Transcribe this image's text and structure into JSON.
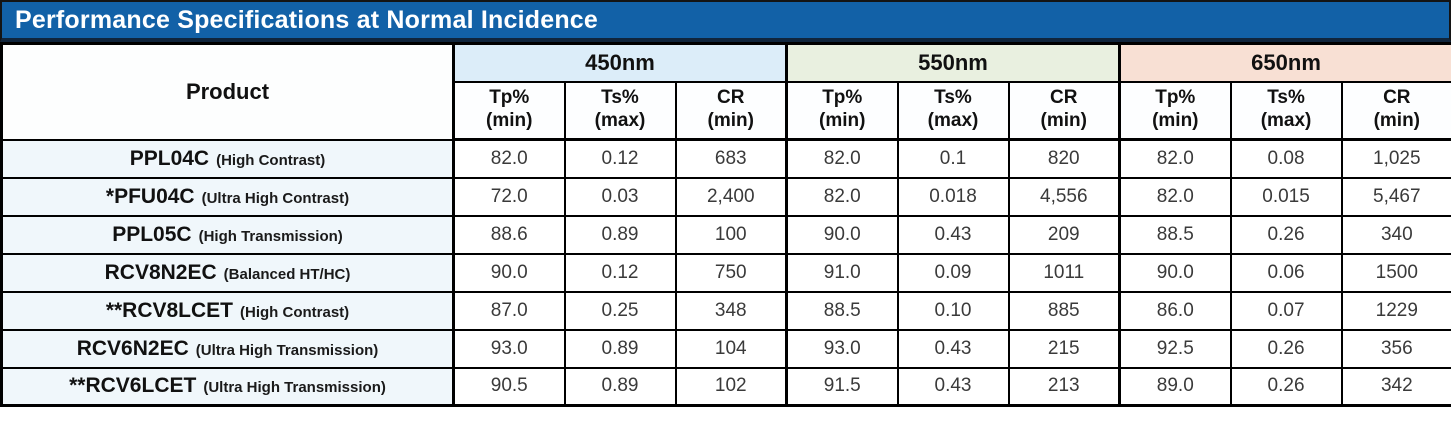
{
  "title": "Performance Specifications at Normal Incidence",
  "colors": {
    "title_bar_bg": "#1261a7",
    "title_text": "#ffffff",
    "border": "#000000",
    "product_cell_bg": "#f0f7fb",
    "value_cell_bg": "#ffffff"
  },
  "table": {
    "product_header": "Product",
    "groups": [
      {
        "label": "450nm",
        "color": "#dcedf9"
      },
      {
        "label": "550nm",
        "color": "#e9f0e0"
      },
      {
        "label": "650nm",
        "color": "#f8e0d4"
      }
    ],
    "sub_headers": [
      {
        "line1": "Tp%",
        "line2": "(min)"
      },
      {
        "line1": "Ts%",
        "line2": "(max)"
      },
      {
        "line1": "CR",
        "line2": "(min)"
      }
    ],
    "rows": [
      {
        "product": "PPL04C",
        "descriptor": "(High Contrast)",
        "values": [
          "82.0",
          "0.12",
          "683",
          "82.0",
          "0.1",
          "820",
          "82.0",
          "0.08",
          "1,025"
        ]
      },
      {
        "product": "*PFU04C",
        "descriptor": "(Ultra High Contrast)",
        "values": [
          "72.0",
          "0.03",
          "2,400",
          "82.0",
          "0.018",
          "4,556",
          "82.0",
          "0.015",
          "5,467"
        ]
      },
      {
        "product": "PPL05C",
        "descriptor": "(High Transmission)",
        "values": [
          "88.6",
          "0.89",
          "100",
          "90.0",
          "0.43",
          "209",
          "88.5",
          "0.26",
          "340"
        ]
      },
      {
        "product": "RCV8N2EC",
        "descriptor": "(Balanced HT/HC)",
        "values": [
          "90.0",
          "0.12",
          "750",
          "91.0",
          "0.09",
          "1011",
          "90.0",
          "0.06",
          "1500"
        ]
      },
      {
        "product": "**RCV8LCET",
        "descriptor": "(High Contrast)",
        "values": [
          "87.0",
          "0.25",
          "348",
          "88.5",
          "0.10",
          "885",
          "86.0",
          "0.07",
          "1229"
        ]
      },
      {
        "product": "RCV6N2EC",
        "descriptor": "(Ultra High Transmission)",
        "values": [
          "93.0",
          "0.89",
          "104",
          "93.0",
          "0.43",
          "215",
          "92.5",
          "0.26",
          "356"
        ]
      },
      {
        "product": "**RCV6LCET",
        "descriptor": "(Ultra High Transmission)",
        "values": [
          "90.5",
          "0.89",
          "102",
          "91.5",
          "0.43",
          "213",
          "89.0",
          "0.26",
          "342"
        ]
      }
    ]
  }
}
